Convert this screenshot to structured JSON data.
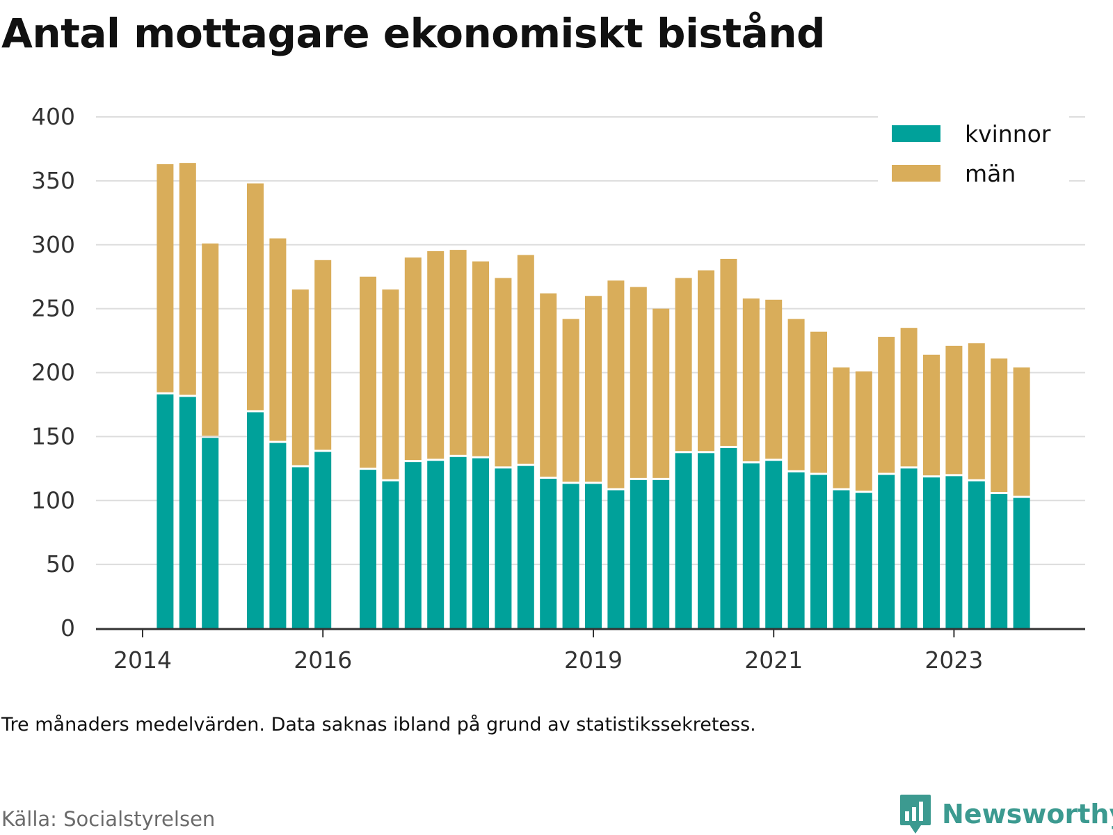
{
  "title": "Antal mottagare ekonomiskt bistånd",
  "note": "Tre månaders medelvärden. Data saknas ibland på grund av statistikssekretess.",
  "source": "Källa: Socialstyrelsen",
  "brand": "Newsworthy",
  "colors": {
    "kvinnor": "#00a19a",
    "man": "#d9ad5a",
    "grid": "#dddddd",
    "axis": "#333333",
    "brand": "#3c9a90"
  },
  "chart_data": {
    "type": "bar",
    "stacked": true,
    "ylim": [
      0,
      400
    ],
    "yticks": [
      0,
      50,
      100,
      150,
      200,
      250,
      300,
      350,
      400
    ],
    "xticks": [
      {
        "label": "2014",
        "at": 0
      },
      {
        "label": "2016",
        "at": 8
      },
      {
        "label": "2019",
        "at": 20
      },
      {
        "label": "2021",
        "at": 28
      },
      {
        "label": "2023",
        "at": 36
      }
    ],
    "legend": {
      "position": "top-right"
    },
    "series": [
      {
        "name": "kvinnor",
        "color": "#00a19a"
      },
      {
        "name": "män",
        "color": "#d9ad5a"
      }
    ],
    "periods": [
      {
        "x": 1,
        "kvinnor": 183,
        "man": 180
      },
      {
        "x": 2,
        "kvinnor": 181,
        "man": 183
      },
      {
        "x": 3,
        "kvinnor": 149,
        "man": 152
      },
      {
        "x": 5,
        "kvinnor": 169,
        "man": 179
      },
      {
        "x": 6,
        "kvinnor": 145,
        "man": 160
      },
      {
        "x": 7,
        "kvinnor": 126,
        "man": 139
      },
      {
        "x": 8,
        "kvinnor": 138,
        "man": 150
      },
      {
        "x": 10,
        "kvinnor": 124,
        "man": 151
      },
      {
        "x": 11,
        "kvinnor": 115,
        "man": 150
      },
      {
        "x": 12,
        "kvinnor": 130,
        "man": 160
      },
      {
        "x": 13,
        "kvinnor": 131,
        "man": 164
      },
      {
        "x": 14,
        "kvinnor": 134,
        "man": 162
      },
      {
        "x": 15,
        "kvinnor": 133,
        "man": 154
      },
      {
        "x": 16,
        "kvinnor": 125,
        "man": 149
      },
      {
        "x": 17,
        "kvinnor": 127,
        "man": 165
      },
      {
        "x": 18,
        "kvinnor": 117,
        "man": 145
      },
      {
        "x": 19,
        "kvinnor": 113,
        "man": 129
      },
      {
        "x": 20,
        "kvinnor": 113,
        "man": 147
      },
      {
        "x": 21,
        "kvinnor": 108,
        "man": 164
      },
      {
        "x": 22,
        "kvinnor": 116,
        "man": 151
      },
      {
        "x": 23,
        "kvinnor": 116,
        "man": 134
      },
      {
        "x": 24,
        "kvinnor": 137,
        "man": 137
      },
      {
        "x": 25,
        "kvinnor": 137,
        "man": 143
      },
      {
        "x": 26,
        "kvinnor": 141,
        "man": 148
      },
      {
        "x": 27,
        "kvinnor": 129,
        "man": 129
      },
      {
        "x": 28,
        "kvinnor": 131,
        "man": 126
      },
      {
        "x": 29,
        "kvinnor": 122,
        "man": 120
      },
      {
        "x": 30,
        "kvinnor": 120,
        "man": 112
      },
      {
        "x": 31,
        "kvinnor": 108,
        "man": 96
      },
      {
        "x": 32,
        "kvinnor": 106,
        "man": 95
      },
      {
        "x": 33,
        "kvinnor": 120,
        "man": 108
      },
      {
        "x": 34,
        "kvinnor": 125,
        "man": 110
      },
      {
        "x": 35,
        "kvinnor": 118,
        "man": 96
      },
      {
        "x": 36,
        "kvinnor": 119,
        "man": 102
      },
      {
        "x": 37,
        "kvinnor": 115,
        "man": 108
      },
      {
        "x": 38,
        "kvinnor": 105,
        "man": 106
      },
      {
        "x": 39,
        "kvinnor": 102,
        "man": 102
      }
    ]
  }
}
